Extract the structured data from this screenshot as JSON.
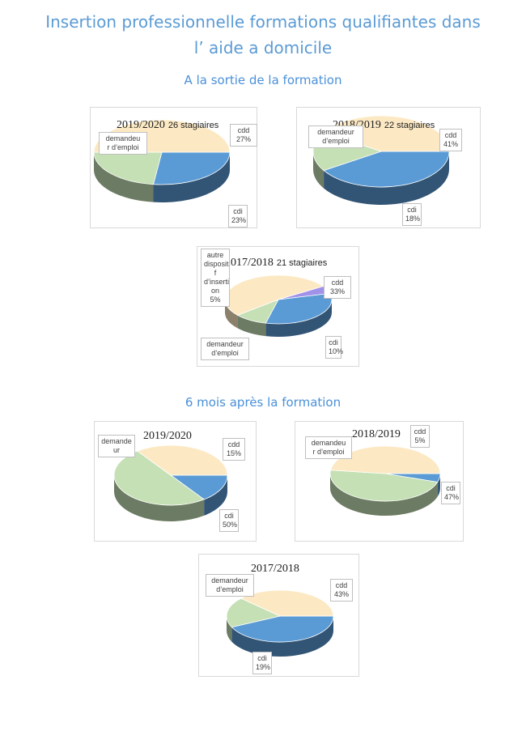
{
  "document": {
    "title_line1": "Insertion professionnelle formations qualifiantes dans",
    "title_line2": "l’ aide a domicile",
    "section1": "A la sortie de la formation",
    "section2": "6 mois après la formation"
  },
  "colors": {
    "cdd": "#5b9bd5",
    "cdi": "#c5e0b4",
    "demandeur": "#fce9c4",
    "autre": "#a092e8"
  },
  "chart_data": [
    {
      "type": "pie",
      "title": "2019/2020",
      "subtitle": "26 stagiaires",
      "slices": [
        {
          "name": "cdd",
          "value": 27,
          "label": "27%"
        },
        {
          "name": "cdi",
          "value": 23,
          "label": "23%"
        },
        {
          "name": "demandeur r d’emploi",
          "value": 50,
          "label": ""
        }
      ]
    },
    {
      "type": "pie",
      "title": "2018/2019",
      "subtitle": "22 stagiaires",
      "slices": [
        {
          "name": "cdd",
          "value": 41,
          "label": "41%"
        },
        {
          "name": "cdi",
          "value": 18,
          "label": "18%"
        },
        {
          "name": "demandeur d’emploi",
          "value": 41,
          "label": ""
        }
      ]
    },
    {
      "type": "pie",
      "title": "2017/2018",
      "subtitle": "21 stagiaires",
      "slices": [
        {
          "name": "cdd",
          "value": 33,
          "label": "33%"
        },
        {
          "name": "cdi",
          "value": 10,
          "label": "10%"
        },
        {
          "name": "demandeur d’emploi",
          "value": 52,
          "label": ""
        },
        {
          "name": "autre dispositif d’insertion",
          "value": 5,
          "label": "5%"
        }
      ]
    },
    {
      "type": "pie",
      "title": "2019/2020",
      "subtitle": "",
      "slices": [
        {
          "name": "cdd",
          "value": 15,
          "label": "15%"
        },
        {
          "name": "cdi",
          "value": 50,
          "label": "50%"
        },
        {
          "name": "demandeur",
          "value": 35,
          "label": ""
        }
      ]
    },
    {
      "type": "pie",
      "title": "2018/2019",
      "subtitle": "",
      "slices": [
        {
          "name": "cdd",
          "value": 5,
          "label": "5%"
        },
        {
          "name": "cdi",
          "value": 47,
          "label": "47%"
        },
        {
          "name": "demandeur r d’emploi",
          "value": 48,
          "label": ""
        }
      ]
    },
    {
      "type": "pie",
      "title": "2017/2018",
      "subtitle": "",
      "slices": [
        {
          "name": "cdd",
          "value": 43,
          "label": "43%"
        },
        {
          "name": "cdi",
          "value": 19,
          "label": "19%"
        },
        {
          "name": "demandeur d’emploi",
          "value": 38,
          "label": ""
        }
      ]
    }
  ],
  "callouts": [
    [
      [
        "cdd",
        "27%"
      ],
      [
        "cdi",
        "23%"
      ],
      [
        "demandeu",
        "r d’emploi"
      ]
    ],
    [
      [
        "cdd",
        "41%"
      ],
      [
        "cdi",
        "18%"
      ],
      [
        "demandeur",
        "d’emploi"
      ]
    ],
    [
      [
        "cdd",
        "33%"
      ],
      [
        "cdi",
        "10%"
      ],
      [
        "demandeur",
        "d’emploi"
      ],
      [
        "autre",
        "disposit",
        "f",
        "d’inserti",
        "on",
        "5%"
      ]
    ],
    [
      [
        "cdd",
        "15%"
      ],
      [
        "cdi",
        "50%"
      ],
      [
        "demande",
        "ur"
      ]
    ],
    [
      [
        "cdd",
        "5%"
      ],
      [
        "cdi",
        "47%"
      ],
      [
        "demandeu",
        "r d’emploi"
      ]
    ],
    [
      [
        "cdd",
        "43%"
      ],
      [
        "cdi",
        "19%"
      ],
      [
        "demandeur",
        "d’emploi"
      ]
    ]
  ]
}
